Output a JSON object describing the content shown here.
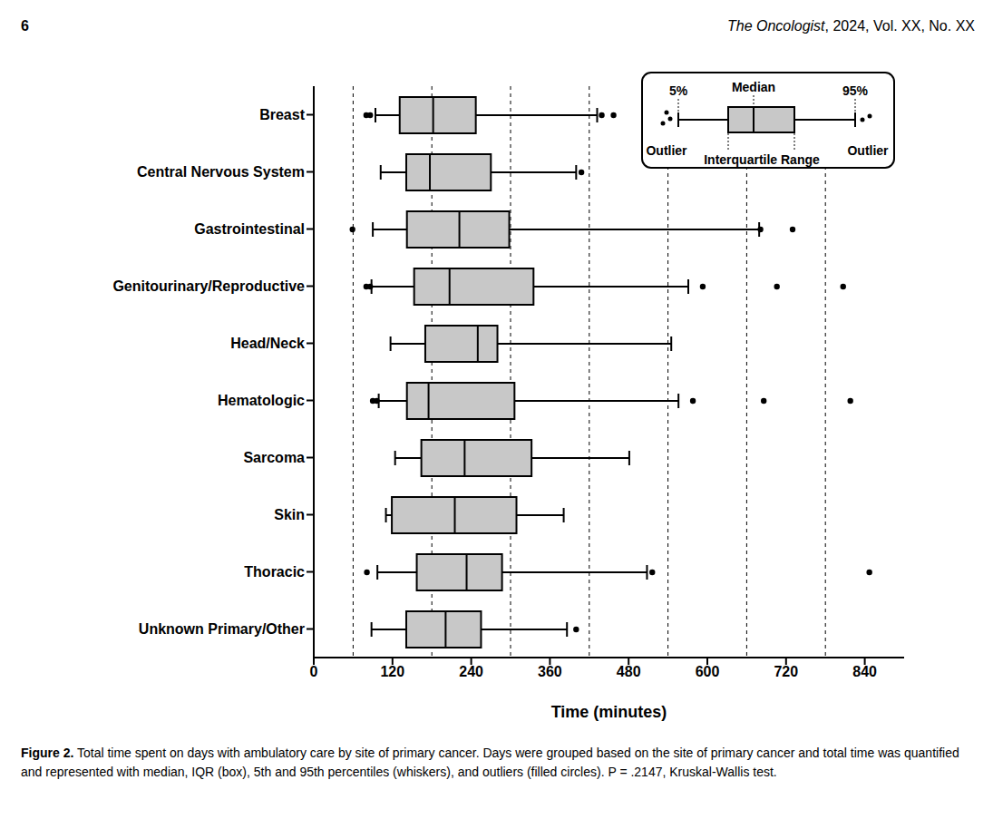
{
  "header": {
    "page": "6",
    "journal": "The Oncologist, 2024, Vol. XX, No. XX"
  },
  "caption": {
    "label": "Figure 2.",
    "text": "Total time spent on days with ambulatory care by site of primary cancer. Days were grouped based on the site of primary cancer and total time was quantified and represented with median, IQR (box), 5th and 95th percentiles (whiskers), and outliers (filled circles). P = .2147, Kruskal-Wallis test."
  },
  "chart_data": {
    "type": "boxplot",
    "orientation": "horizontal",
    "xlabel": "Time (minutes)",
    "categories": [
      "Breast",
      "Central Nervous System",
      "Gastrointestinal",
      "Genitourinary/Reproductive",
      "Head/Neck",
      "Hematologic",
      "Sarcoma",
      "Skin",
      "Thoracic",
      "Unknown Primary/Other"
    ],
    "whisker_low": [
      94,
      102,
      90,
      88,
      117,
      99,
      124,
      110,
      97,
      88
    ],
    "q1": [
      131,
      141,
      142,
      153,
      170,
      142,
      164,
      119,
      157,
      141
    ],
    "median": [
      182,
      177,
      222,
      207,
      250,
      175,
      230,
      215,
      233,
      201
    ],
    "q3": [
      247,
      270,
      298,
      335,
      280,
      306,
      332,
      309,
      287,
      255
    ],
    "whisker_high": [
      432,
      400,
      679,
      571,
      545,
      556,
      481,
      381,
      508,
      386
    ],
    "outliers": [
      [
        80,
        86,
        439,
        457
      ],
      [
        408
      ],
      [
        59,
        681,
        730
      ],
      [
        80,
        86,
        593,
        706,
        807
      ],
      [],
      [
        90,
        96,
        578,
        686,
        818
      ],
      [],
      [],
      [
        81,
        516,
        847
      ],
      [
        400
      ]
    ],
    "color": "#c8c8c8",
    "xlim": [
      0,
      900
    ],
    "xticks": [
      0,
      120,
      240,
      360,
      480,
      600,
      720,
      840
    ],
    "grid": true,
    "grid_lines": [
      60,
      180,
      300,
      420,
      540,
      660,
      780
    ],
    "legend_key": {
      "low": "5%",
      "median": "Median",
      "high": "95%",
      "outlier": "Outlier",
      "box": "Interquartile Range"
    }
  }
}
